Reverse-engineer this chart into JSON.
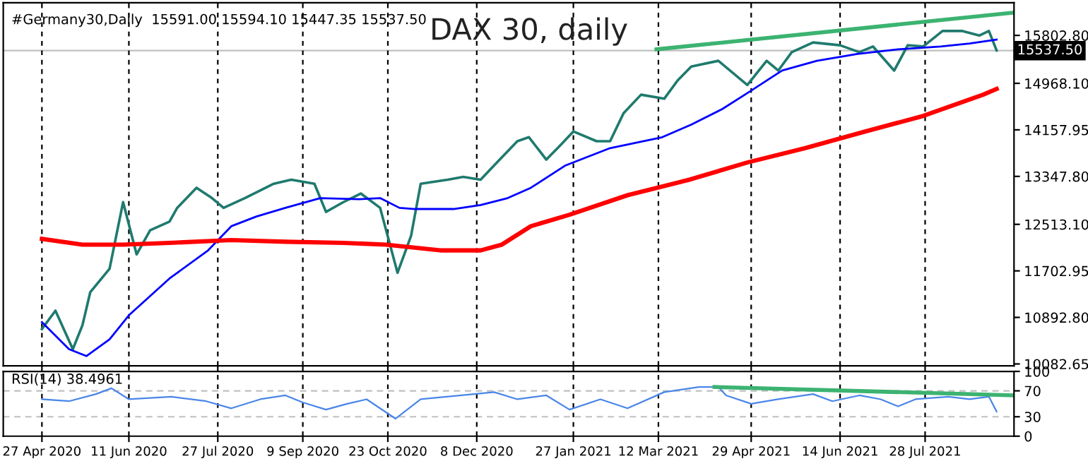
{
  "chart_data": [
    {
      "type": "line",
      "title": "DAX 30, daily",
      "annotations": [
        "#Germany30,Daily  15591.00 15594.10 15447.35 15537.50"
      ],
      "xlim": [
        "2020-04-07",
        "2021-09-12"
      ],
      "ylim": [
        10050,
        16370
      ],
      "yticks": [
        {
          "value": 10082.65,
          "label": "10082.65"
        },
        {
          "value": 10892.8,
          "label": "10892.80"
        },
        {
          "value": 11702.95,
          "label": "11702.95"
        },
        {
          "value": 12513.1,
          "label": "12513.10"
        },
        {
          "value": 13347.8,
          "label": "13347.80"
        },
        {
          "value": 14157.95,
          "label": "14157.95"
        },
        {
          "value": 14968.1,
          "label": "14968.10"
        },
        {
          "value": 15802.8,
          "label": "15802.80"
        }
      ],
      "xticks": [
        {
          "value": "2020-04-27",
          "label": null
        },
        {
          "value": "2020-06-11",
          "label": null
        },
        {
          "value": "2020-07-27",
          "label": null
        },
        {
          "value": "2020-09-09",
          "label": null
        },
        {
          "value": "2020-10-23",
          "label": null
        },
        {
          "value": "2020-12-08",
          "label": null
        },
        {
          "value": "2021-01-27",
          "label": null
        },
        {
          "value": "2021-03-12",
          "label": null
        },
        {
          "value": "2021-04-29",
          "label": null
        },
        {
          "value": "2021-06-14",
          "label": null
        },
        {
          "value": "2021-07-28",
          "label": null
        }
      ],
      "tick_labels": "y",
      "grid": "x",
      "legend": false,
      "ref_lines": [
        {
          "axis": "y",
          "value": 15537.5,
          "label": "15537.50",
          "color": "#c0c0c0"
        }
      ],
      "series": [
        {
          "color": "#1f7a6e",
          "x": [
            "2020-04-27",
            "2020-05-04",
            "2020-05-13",
            "2020-05-18",
            "2020-05-22",
            "2020-06-01",
            "2020-06-08",
            "2020-06-15",
            "2020-06-22",
            "2020-07-02",
            "2020-07-06",
            "2020-07-16",
            "2020-07-24",
            "2020-07-30",
            "2020-08-10",
            "2020-08-25",
            "2020-09-03",
            "2020-09-15",
            "2020-09-21",
            "2020-09-30",
            "2020-10-09",
            "2020-10-19",
            "2020-10-28",
            "2020-11-04",
            "2020-11-09",
            "2020-11-23",
            "2020-12-01",
            "2020-12-10",
            "2020-12-17",
            "2020-12-29",
            "2021-01-04",
            "2021-01-13",
            "2021-01-20",
            "2021-01-27",
            "2021-02-08",
            "2021-02-15",
            "2021-02-22",
            "2021-03-03",
            "2021-03-15",
            "2021-03-22",
            "2021-03-29",
            "2021-04-12",
            "2021-04-27",
            "2021-05-07",
            "2021-05-13",
            "2021-05-20",
            "2021-05-31",
            "2021-06-14",
            "2021-06-24",
            "2021-07-01",
            "2021-07-12",
            "2021-07-19",
            "2021-07-27",
            "2021-08-06",
            "2021-08-16",
            "2021-08-25",
            "2021-08-30",
            "2021-09-03"
          ],
          "values": [
            10690,
            11010,
            10340,
            10760,
            11330,
            11740,
            12900,
            11990,
            12410,
            12560,
            12800,
            13150,
            12970,
            12800,
            12970,
            13220,
            13290,
            13220,
            12730,
            12900,
            13050,
            12800,
            11670,
            12310,
            13220,
            13290,
            13340,
            13290,
            13540,
            13960,
            14030,
            13640,
            13880,
            14130,
            13960,
            13960,
            14450,
            14770,
            14700,
            15020,
            15260,
            15360,
            14940,
            15360,
            15190,
            15510,
            15680,
            15630,
            15510,
            15610,
            15190,
            15630,
            15610,
            15880,
            15880,
            15800,
            15880,
            15540
          ]
        },
        {
          "color": "#0000ff",
          "x": [
            "2020-04-27",
            "2020-05-11",
            "2020-05-20",
            "2020-06-01",
            "2020-06-11",
            "2020-07-02",
            "2020-07-22",
            "2020-08-03",
            "2020-08-16",
            "2020-08-31",
            "2020-09-18",
            "2020-10-08",
            "2020-10-19",
            "2020-10-29",
            "2020-11-06",
            "2020-11-26",
            "2020-12-10",
            "2020-12-24",
            "2021-01-05",
            "2021-01-23",
            "2021-02-15",
            "2021-03-14",
            "2021-03-29",
            "2021-04-14",
            "2021-04-28",
            "2021-05-15",
            "2021-06-02",
            "2021-06-23",
            "2021-07-14",
            "2021-08-05",
            "2021-08-20",
            "2021-09-03"
          ],
          "values": [
            10810,
            10340,
            10220,
            10510,
            10930,
            11570,
            12060,
            12480,
            12650,
            12800,
            12970,
            12950,
            12970,
            12800,
            12780,
            12780,
            12850,
            12970,
            13150,
            13540,
            13840,
            14030,
            14250,
            14520,
            14820,
            15190,
            15360,
            15480,
            15560,
            15610,
            15660,
            15730
          ]
        },
        {
          "color": "#ff0000",
          "x": [
            "2020-04-27",
            "2020-05-18",
            "2020-06-08",
            "2020-07-02",
            "2020-08-03",
            "2020-08-31",
            "2020-09-30",
            "2020-10-22",
            "2020-11-19",
            "2020-12-10",
            "2020-12-21",
            "2021-01-05",
            "2021-01-25",
            "2021-02-24",
            "2021-03-28",
            "2021-04-27",
            "2021-05-27",
            "2021-06-27",
            "2021-07-27",
            "2021-08-27",
            "2021-09-03"
          ],
          "values": [
            12260,
            12160,
            12160,
            12190,
            12240,
            12210,
            12190,
            12160,
            12060,
            12060,
            12160,
            12480,
            12680,
            13020,
            13290,
            13590,
            13840,
            14130,
            14400,
            14770,
            14870
          ]
        },
        {
          "color": "#3cb371",
          "x": [
            "2021-03-11",
            "2021-09-12"
          ],
          "values": [
            15560,
            16200
          ]
        }
      ]
    },
    {
      "type": "line",
      "annotations": [
        "RSI(14) 38.4961"
      ],
      "xlim": [
        "2020-04-07",
        "2021-09-12"
      ],
      "ylim": [
        0,
        100
      ],
      "yticks": [
        0,
        30,
        70,
        100
      ],
      "xticks": [
        {
          "value": "2020-04-27",
          "label": "27 Apr 2020"
        },
        {
          "value": "2020-06-11",
          "label": "11 Jun 2020"
        },
        {
          "value": "2020-07-27",
          "label": "27 Jul 2020"
        },
        {
          "value": "2020-09-09",
          "label": "9 Sep 2020"
        },
        {
          "value": "2020-10-23",
          "label": "23 Oct 2020"
        },
        {
          "value": "2020-12-08",
          "label": "8 Dec 2020"
        },
        {
          "value": "2021-01-27",
          "label": "27 Jan 2021"
        },
        {
          "value": "2021-03-12",
          "label": "12 Mar 2021"
        },
        {
          "value": "2021-04-29",
          "label": "29 Apr 2021"
        },
        {
          "value": "2021-06-14",
          "label": "14 Jun 2021"
        },
        {
          "value": "2021-07-28",
          "label": "28 Jul 2021"
        }
      ],
      "grid": "x",
      "legend": false,
      "ref_lines": [
        {
          "axis": "y",
          "value": 70,
          "color": "#c0c0c0",
          "line_style": "dashed"
        },
        {
          "axis": "y",
          "value": 30,
          "color": "#c0c0c0",
          "line_style": "dashed"
        }
      ],
      "series": [
        {
          "color": "#4a86e8",
          "x": [
            "2020-04-27",
            "2020-05-11",
            "2020-05-25",
            "2020-06-02",
            "2020-06-11",
            "2020-07-03",
            "2020-07-21",
            "2020-08-03",
            "2020-08-18",
            "2020-08-31",
            "2020-09-09",
            "2020-09-21",
            "2020-10-02",
            "2020-10-12",
            "2020-10-27",
            "2020-11-09",
            "2020-11-30",
            "2020-12-17",
            "2020-12-29",
            "2021-01-13",
            "2021-01-25",
            "2021-02-10",
            "2021-02-24",
            "2021-03-15",
            "2021-04-02",
            "2021-04-12",
            "2021-04-16",
            "2021-04-29",
            "2021-05-13",
            "2021-05-31",
            "2021-06-10",
            "2021-06-24",
            "2021-07-05",
            "2021-07-14",
            "2021-07-23",
            "2021-08-09",
            "2021-08-20",
            "2021-08-30",
            "2021-09-03"
          ],
          "values": [
            57,
            54,
            65,
            74,
            57,
            61,
            54,
            43,
            57,
            63,
            52,
            41,
            50,
            57,
            27,
            57,
            63,
            68,
            57,
            63,
            41,
            57,
            43,
            68,
            76,
            76,
            63,
            50,
            57,
            65,
            54,
            63,
            57,
            46,
            57,
            61,
            57,
            61,
            38
          ]
        },
        {
          "color": "#3cb371",
          "x": [
            "2021-04-10",
            "2021-09-12"
          ],
          "values": [
            76,
            63
          ]
        }
      ]
    }
  ]
}
